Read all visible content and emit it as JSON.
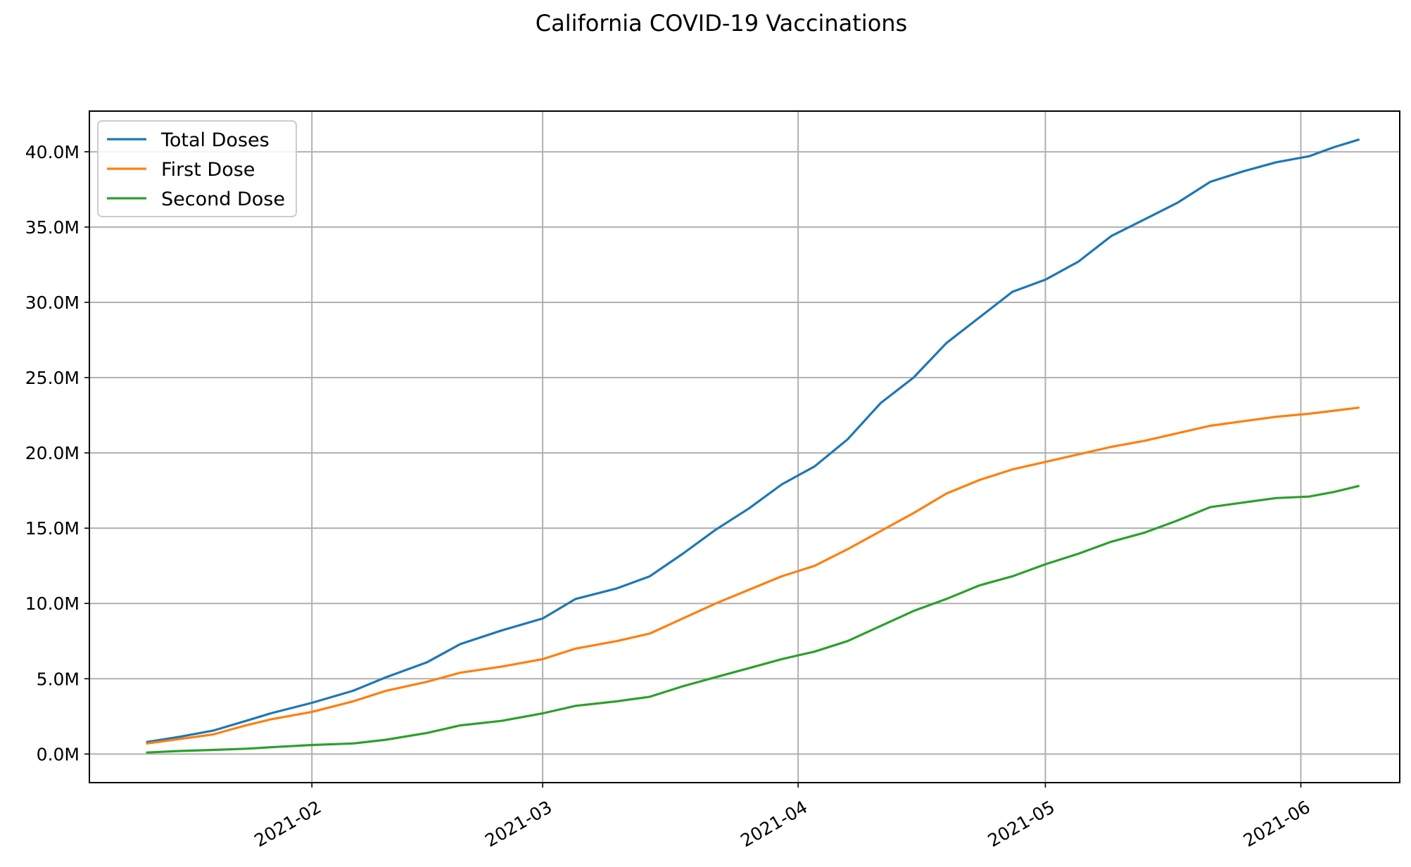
{
  "chart_data": {
    "type": "line",
    "title": "California COVID-19 Vaccinations",
    "xlabel": "",
    "ylabel": "",
    "x_axis_type": "date",
    "xlim": [
      "2021-01-05",
      "2021-06-13"
    ],
    "ylim": [
      -1900000,
      42700000
    ],
    "x_ticks": [
      {
        "date": "2021-02-01",
        "label": "2021-02"
      },
      {
        "date": "2021-03-01",
        "label": "2021-03"
      },
      {
        "date": "2021-04-01",
        "label": "2021-04"
      },
      {
        "date": "2021-05-01",
        "label": "2021-05"
      },
      {
        "date": "2021-06-01",
        "label": "2021-06"
      }
    ],
    "y_ticks": [
      {
        "value": 0,
        "label": "0.0M"
      },
      {
        "value": 5000000,
        "label": "5.0M"
      },
      {
        "value": 10000000,
        "label": "10.0M"
      },
      {
        "value": 15000000,
        "label": "15.0M"
      },
      {
        "value": 20000000,
        "label": "20.0M"
      },
      {
        "value": 25000000,
        "label": "25.0M"
      },
      {
        "value": 30000000,
        "label": "30.0M"
      },
      {
        "value": 35000000,
        "label": "35.0M"
      },
      {
        "value": 40000000,
        "label": "40.0M"
      }
    ],
    "grid": true,
    "legend_position": "top-left",
    "x": [
      "2021-01-12",
      "2021-01-16",
      "2021-01-20",
      "2021-01-24",
      "2021-01-27",
      "2021-02-01",
      "2021-02-06",
      "2021-02-10",
      "2021-02-15",
      "2021-02-19",
      "2021-02-24",
      "2021-03-01",
      "2021-03-05",
      "2021-03-10",
      "2021-03-14",
      "2021-03-18",
      "2021-03-22",
      "2021-03-26",
      "2021-03-30",
      "2021-04-03",
      "2021-04-07",
      "2021-04-11",
      "2021-04-15",
      "2021-04-19",
      "2021-04-23",
      "2021-04-27",
      "2021-05-01",
      "2021-05-05",
      "2021-05-09",
      "2021-05-13",
      "2021-05-17",
      "2021-05-21",
      "2021-05-25",
      "2021-05-29",
      "2021-06-02",
      "2021-06-05",
      "2021-06-08"
    ],
    "series": [
      {
        "name": "Total Doses",
        "color": "#1f77b4",
        "values": [
          800000,
          1150000,
          1550000,
          2200000,
          2700000,
          3400000,
          4200000,
          5100000,
          6100000,
          7300000,
          8200000,
          9000000,
          10300000,
          11000000,
          11800000,
          13300000,
          14900000,
          16300000,
          17900000,
          19100000,
          20900000,
          23300000,
          25000000,
          27300000,
          29000000,
          30700000,
          31500000,
          32700000,
          34400000,
          35500000,
          36600000,
          38000000,
          38700000,
          39300000,
          39700000,
          40300000,
          40800000
        ]
      },
      {
        "name": "First Dose",
        "color": "#ff7f0e",
        "values": [
          700000,
          1000000,
          1300000,
          1900000,
          2300000,
          2800000,
          3500000,
          4200000,
          4800000,
          5400000,
          5800000,
          6300000,
          7000000,
          7500000,
          8000000,
          9000000,
          10000000,
          10900000,
          11800000,
          12500000,
          13600000,
          14800000,
          16000000,
          17300000,
          18200000,
          18900000,
          19400000,
          19900000,
          20400000,
          20800000,
          21300000,
          21800000,
          22100000,
          22400000,
          22600000,
          22800000,
          23000000
        ]
      },
      {
        "name": "Second Dose",
        "color": "#2ca02c",
        "values": [
          100000,
          200000,
          270000,
          350000,
          450000,
          600000,
          700000,
          950000,
          1400000,
          1900000,
          2200000,
          2700000,
          3200000,
          3500000,
          3800000,
          4500000,
          5100000,
          5700000,
          6300000,
          6800000,
          7500000,
          8500000,
          9500000,
          10300000,
          11200000,
          11800000,
          12600000,
          13300000,
          14100000,
          14700000,
          15500000,
          16400000,
          16700000,
          17000000,
          17100000,
          17400000,
          17800000
        ]
      }
    ]
  }
}
